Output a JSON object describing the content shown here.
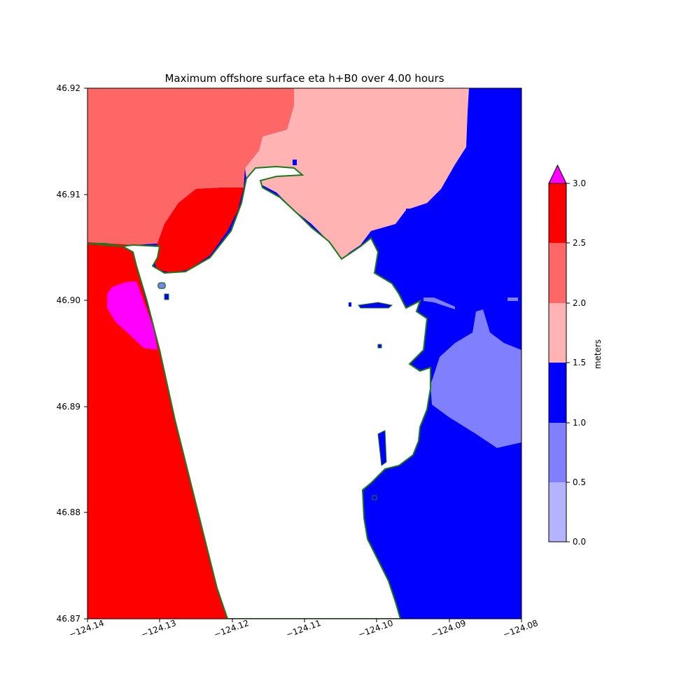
{
  "chart_data": {
    "type": "heatmap",
    "title": "Maximum offshore surface eta h+B0 over 4.00 hours",
    "xlabel": "",
    "ylabel": "",
    "xlim": [
      -124.14,
      -124.08
    ],
    "ylim": [
      46.87,
      46.92
    ],
    "x_ticks": [
      "−124.14",
      "−124.13",
      "−124.12",
      "−124.11",
      "−124.10",
      "−124.09",
      "−124.08"
    ],
    "y_ticks": [
      "46.87",
      "46.88",
      "46.89",
      "46.90",
      "46.91",
      "46.92"
    ],
    "grid": false,
    "colorbar": {
      "label": "meters",
      "placement": "right",
      "extend": "max",
      "levels": [
        0.0,
        0.5,
        1.0,
        1.5,
        2.0,
        2.5,
        3.0
      ],
      "tick_labels": [
        "0.0",
        "0.5",
        "1.0",
        "1.5",
        "2.0",
        "2.5",
        "3.0"
      ],
      "colors": [
        "#b3b3ff",
        "#8080ff",
        "#0000ff",
        "#ffb3b3",
        "#ff6666",
        "#ff0000"
      ],
      "over_color": "#ff00ff"
    },
    "shoreline_color": "#1a7a1a"
  }
}
